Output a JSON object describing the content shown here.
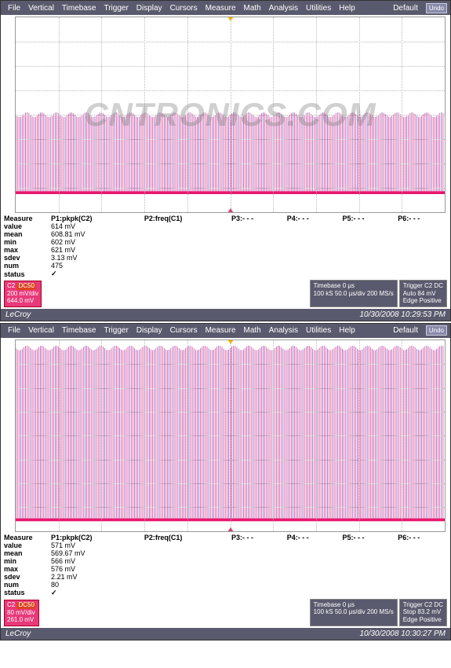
{
  "menu": [
    "File",
    "Vertical",
    "Timebase",
    "Trigger",
    "Display",
    "Cursors",
    "Measure",
    "Math",
    "Analysis",
    "Utilities",
    "Help"
  ],
  "default_label": "Default",
  "undo_label": "Undo",
  "brand": "LeCroy",
  "watermark": "CNTRONICS.COM",
  "scopes": [
    {
      "waveform": {
        "type": "noise-burst",
        "signal_top_pct": 50,
        "signal_bottom_pct": 90,
        "baseline_pct": 90,
        "colors": {
          "primary": "#e8176e",
          "secondary": "#4a3fd8",
          "bg": "#ffffff",
          "grid": "#bbbbbb"
        },
        "density": 260,
        "ch_label": "C2",
        "ch_label_top_pct": 88,
        "trig_marker_top_pct": 88
      },
      "measurements": {
        "columns": [
          "Measure",
          "P1:pkpk(C2)",
          "P2:freq(C1)",
          "P3:- - -",
          "P4:- - -",
          "P5:- - -",
          "P6:- - -"
        ],
        "rows": [
          [
            "value",
            "614 mV",
            "",
            "",
            "",
            "",
            ""
          ],
          [
            "mean",
            "608.81 mV",
            "",
            "",
            "",
            "",
            ""
          ],
          [
            "min",
            "602 mV",
            "",
            "",
            "",
            "",
            ""
          ],
          [
            "max",
            "621 mV",
            "",
            "",
            "",
            "",
            ""
          ],
          [
            "sdev",
            "3.13 mV",
            "",
            "",
            "",
            "",
            ""
          ],
          [
            "num",
            "475",
            "",
            "",
            "",
            "",
            ""
          ],
          [
            "status",
            "✔",
            "",
            "",
            "",
            "",
            ""
          ]
        ]
      },
      "channel_badge": {
        "name": "C2",
        "flag": "DC50",
        "scale": "200 mV/div",
        "offset": "644.0 mV"
      },
      "timebase_panel": {
        "title": "Timebase",
        "pos": "0 µs",
        "scale": "50.0 µs/div",
        "rate": "200 MS/s",
        "pts": "100 kS"
      },
      "trigger_panel": {
        "title": "Trigger",
        "badge": "C2 DC",
        "mode": "Auto",
        "level": "84 mV",
        "edge": "Edge",
        "slope": "Positive"
      },
      "timestamp": "10/30/2008 10:29:53 PM"
    },
    {
      "waveform": {
        "type": "noise-burst",
        "signal_top_pct": 4,
        "signal_bottom_pct": 94,
        "baseline_pct": 94,
        "colors": {
          "primary": "#e8176e",
          "secondary": "#4a3fd8",
          "bg": "#ffffff",
          "grid": "#bbbbbb"
        },
        "density": 260,
        "ch_label": "C2",
        "ch_label_top_pct": 92,
        "trig_marker_top_pct": 58
      },
      "measurements": {
        "columns": [
          "Measure",
          "P1:pkpk(C2)",
          "P2:freq(C1)",
          "P3:- - -",
          "P4:- - -",
          "P5:- - -",
          "P6:- - -"
        ],
        "rows": [
          [
            "value",
            "571 mV",
            "",
            "",
            "",
            "",
            ""
          ],
          [
            "mean",
            "569.67 mV",
            "",
            "",
            "",
            "",
            ""
          ],
          [
            "min",
            "566 mV",
            "",
            "",
            "",
            "",
            ""
          ],
          [
            "max",
            "576 mV",
            "",
            "",
            "",
            "",
            ""
          ],
          [
            "sdev",
            "2.21 mV",
            "",
            "",
            "",
            "",
            ""
          ],
          [
            "num",
            "80",
            "",
            "",
            "",
            "",
            ""
          ],
          [
            "status",
            "✔",
            "",
            "",
            "",
            "",
            ""
          ]
        ]
      },
      "channel_badge": {
        "name": "C2",
        "flag": "DC50",
        "scale": "80 mV/div",
        "offset": "261.0 mV"
      },
      "timebase_panel": {
        "title": "Timebase",
        "pos": "0 µs",
        "scale": "50.0 µs/div",
        "rate": "200 MS/s",
        "pts": "100 kS"
      },
      "trigger_panel": {
        "title": "Trigger",
        "badge": "C2 DC",
        "mode": "Stop",
        "level": "83.2 mV",
        "edge": "Edge",
        "slope": "Positive"
      },
      "timestamp": "10/30/2008 10:30:27 PM"
    }
  ]
}
